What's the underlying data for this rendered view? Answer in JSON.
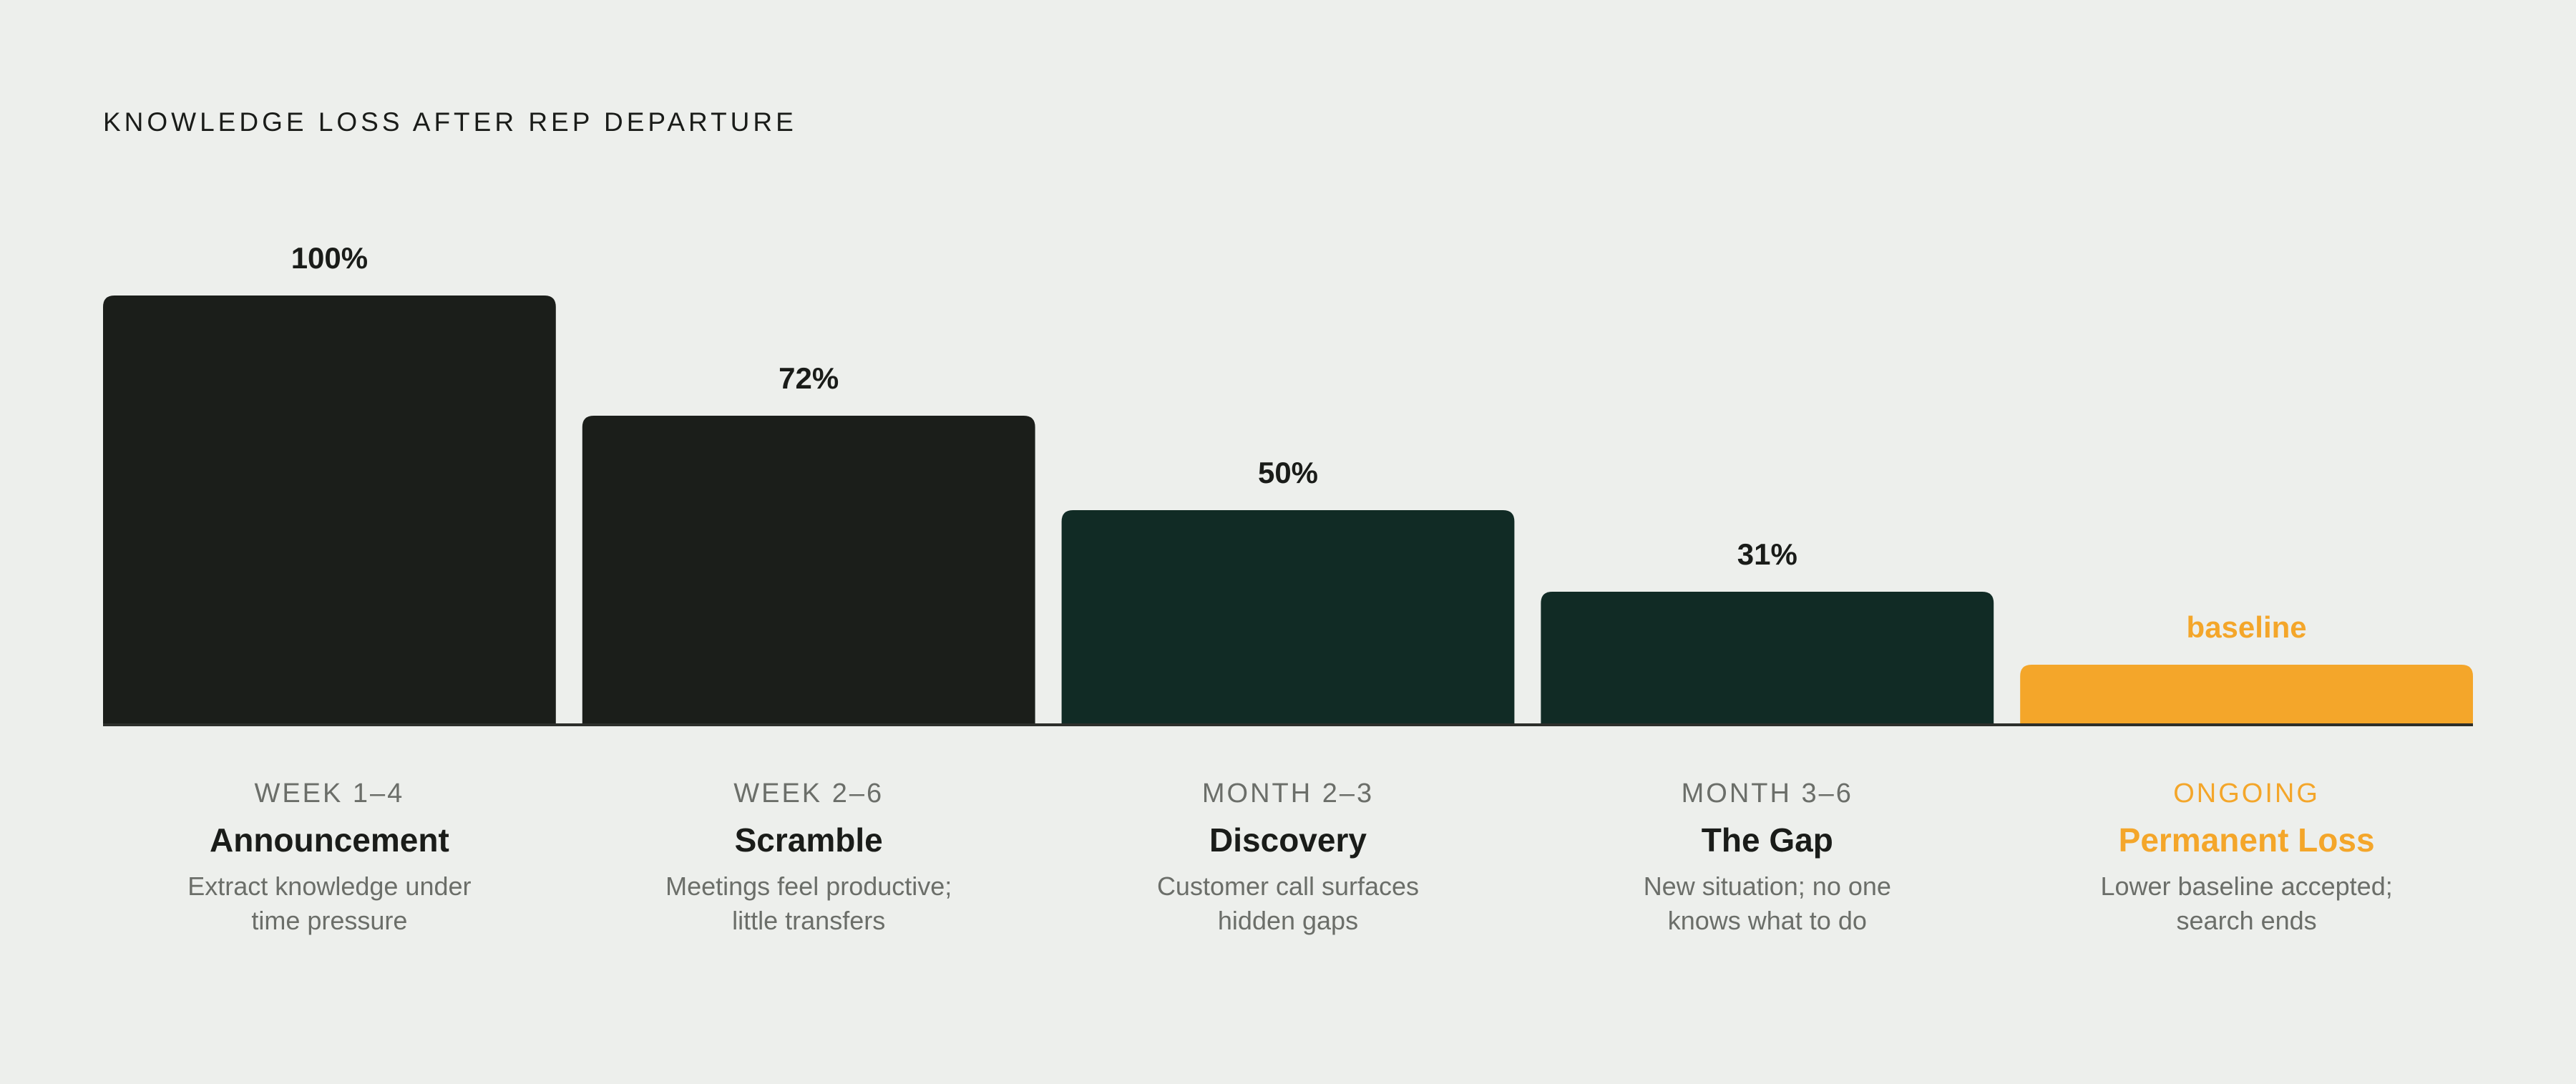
{
  "chart_data": {
    "type": "bar",
    "title": "KNOWLEDGE LOSS AFTER REP DEPARTURE",
    "ylim": [
      0,
      100
    ],
    "grid": false,
    "legend": "none",
    "categories": [
      "WEEK 1–4",
      "WEEK 2–6",
      "MONTH 2–3",
      "MONTH 3–6",
      "ONGOING"
    ],
    "values": [
      100,
      72,
      50,
      31,
      14
    ],
    "value_labels": [
      "100%",
      "72%",
      "50%",
      "31%",
      "baseline"
    ],
    "stage_names": [
      "Announcement",
      "Scramble",
      "Discovery",
      "The Gap",
      "Permanent Loss"
    ],
    "descriptions": [
      "Extract knowledge under time pressure",
      "Meetings feel productive; little transfers",
      "Customer call surfaces hidden gaps",
      "New situation; no one knows what to do",
      "Lower baseline accepted; search ends"
    ],
    "bar_colors": [
      "#1b1e1a",
      "#1b1e1a",
      "#112b25",
      "#112b25",
      "#f4a62a"
    ],
    "label_colors": [
      "#1a1c19",
      "#1a1c19",
      "#1a1c19",
      "#1a1c19",
      "#f4a62a"
    ]
  }
}
